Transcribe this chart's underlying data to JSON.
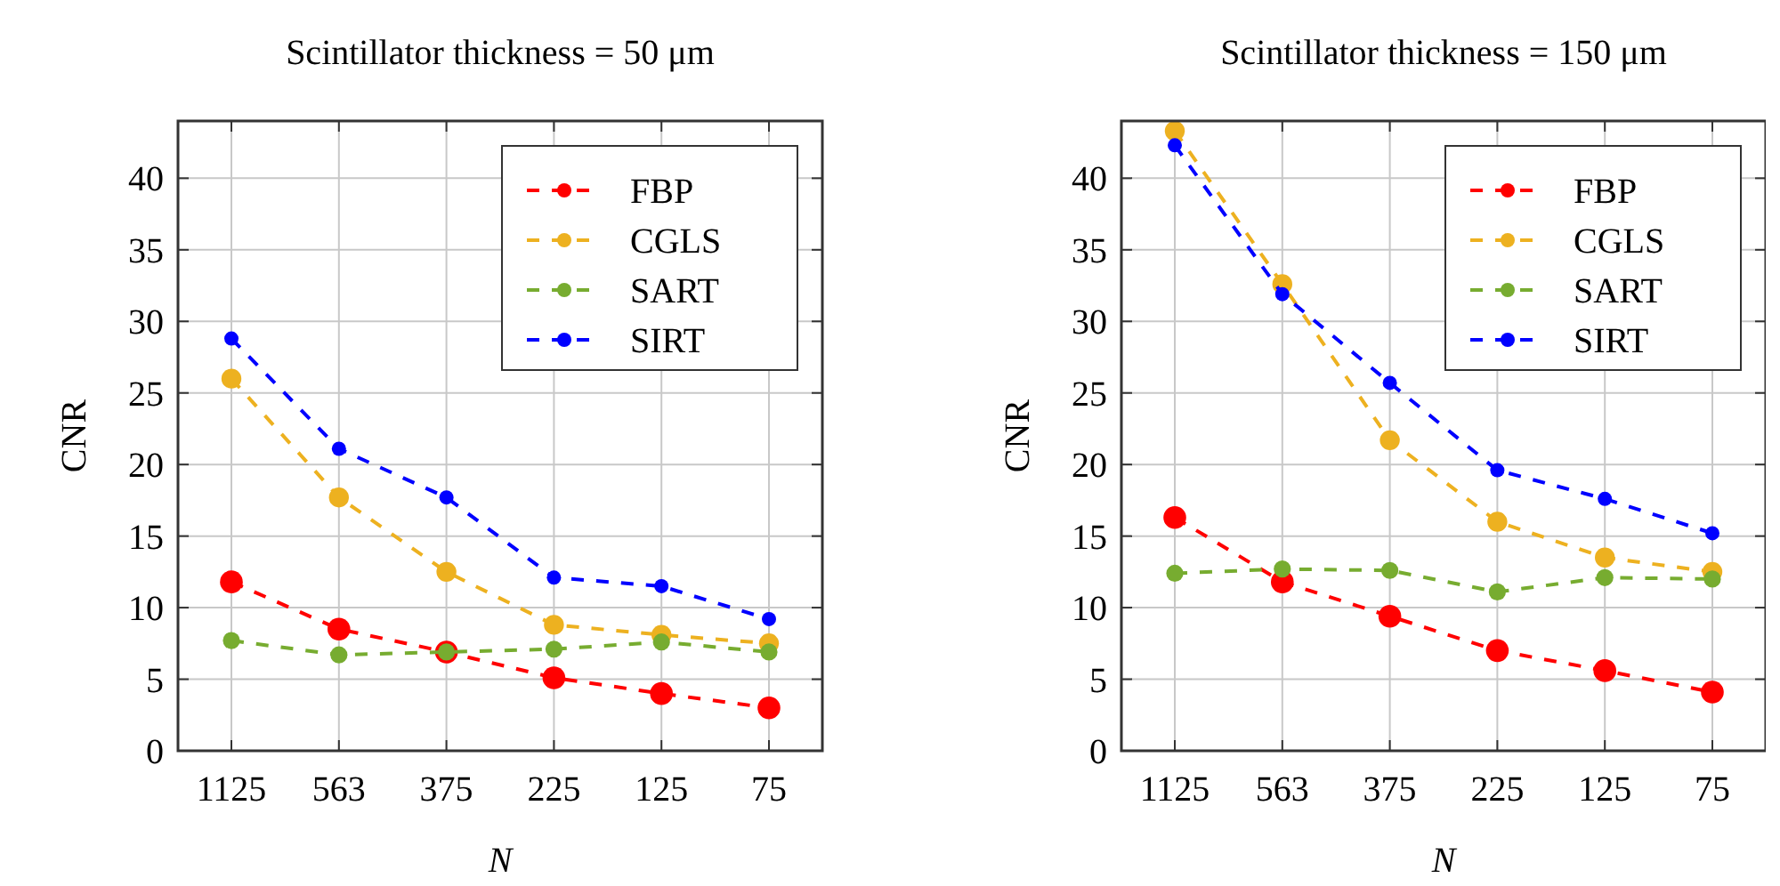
{
  "chart_data": [
    {
      "type": "line",
      "title": "Scintillator thickness = 50 μm",
      "xlabel": "N",
      "ylabel": "CNR",
      "categories": [
        "1125",
        "563",
        "375",
        "225",
        "125",
        "75"
      ],
      "ylim": [
        0,
        44
      ],
      "yticks": [
        0,
        5,
        10,
        15,
        20,
        25,
        30,
        35,
        40
      ],
      "grid": true,
      "legend": "top right",
      "marker": "circle",
      "line_style": "dashed",
      "series": [
        {
          "name": "FBP",
          "color": "#ff0000",
          "values": [
            11.8,
            8.5,
            6.9,
            5.1,
            4.0,
            3.0
          ]
        },
        {
          "name": "CGLS",
          "color": "#edb120",
          "values": [
            26.0,
            17.7,
            12.5,
            8.8,
            8.1,
            7.5
          ]
        },
        {
          "name": "SART",
          "color": "#77ac30",
          "values": [
            7.7,
            6.7,
            6.9,
            7.1,
            7.6,
            6.9
          ]
        },
        {
          "name": "SIRT",
          "color": "#0000ff",
          "values": [
            28.8,
            21.1,
            17.7,
            12.1,
            11.5,
            9.2
          ]
        }
      ]
    },
    {
      "type": "line",
      "title": "Scintillator thickness = 150 μm",
      "xlabel": "N",
      "ylabel": "CNR",
      "categories": [
        "1125",
        "563",
        "375",
        "225",
        "125",
        "75"
      ],
      "ylim": [
        0,
        44
      ],
      "yticks": [
        0,
        5,
        10,
        15,
        20,
        25,
        30,
        35,
        40
      ],
      "grid": true,
      "legend": "top right",
      "marker": "circle",
      "line_style": "dashed",
      "series": [
        {
          "name": "FBP",
          "color": "#ff0000",
          "values": [
            16.3,
            11.8,
            9.4,
            7.0,
            5.6,
            4.1
          ]
        },
        {
          "name": "CGLS",
          "color": "#edb120",
          "values": [
            43.3,
            32.6,
            21.7,
            16.0,
            13.5,
            12.5
          ]
        },
        {
          "name": "SART",
          "color": "#77ac30",
          "values": [
            12.4,
            12.7,
            12.6,
            11.1,
            12.1,
            12.0
          ]
        },
        {
          "name": "SIRT",
          "color": "#0000ff",
          "values": [
            42.3,
            31.9,
            25.7,
            19.6,
            17.6,
            15.2
          ]
        }
      ]
    }
  ]
}
